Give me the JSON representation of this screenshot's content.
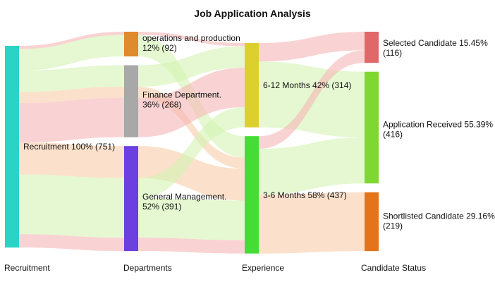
{
  "chart_data": {
    "type": "sankey",
    "title": "Job Application Analysis",
    "columns": [
      "Recruitment",
      "Departments",
      "Experience",
      "Candidate Status"
    ],
    "nodes": [
      {
        "id": "recruitment",
        "column": 0,
        "label": "Recruitment 100% (751)",
        "color": "#2ad3c4"
      },
      {
        "id": "ops",
        "column": 1,
        "label_lines": [
          "operations and production",
          "12% (92)"
        ],
        "color": "#e08a2e"
      },
      {
        "id": "finance",
        "column": 1,
        "label_lines": [
          "Finance Department.",
          "36% (268)"
        ],
        "color": "#a8a8a8"
      },
      {
        "id": "general",
        "column": 1,
        "label_lines": [
          "General Management.",
          "52% (391)"
        ],
        "color": "#6b3fe0"
      },
      {
        "id": "exp612",
        "column": 2,
        "label": "6-12 Months 42% (314)",
        "color": "#dcd02e"
      },
      {
        "id": "exp36",
        "column": 2,
        "label": "3-6 Months 58% (437)",
        "color": "#45dd35"
      },
      {
        "id": "selected",
        "column": 3,
        "label_lines": [
          "Selected Candidate 15.45%",
          "(116)"
        ],
        "color": "#e06868"
      },
      {
        "id": "received",
        "column": 3,
        "label_lines": [
          "Application Received 55.39%",
          "(416)"
        ],
        "color": "#7fd832"
      },
      {
        "id": "shortlisted",
        "column": 3,
        "label_lines": [
          "Shortlisted Candidate 29.16%",
          "(219)"
        ],
        "color": "#e4731a"
      }
    ],
    "node_values": {
      "recruitment": 751,
      "ops": 92,
      "finance": 268,
      "general": 391,
      "exp612": 314,
      "exp36": 437,
      "selected": 116,
      "received": 416,
      "shortlisted": 219
    },
    "links": [
      {
        "source": "recruitment",
        "target": "ops",
        "value": 12,
        "color": "#f5b6b6"
      },
      {
        "source": "recruitment",
        "target": "ops",
        "value": 80,
        "color": "#d3f3b3"
      },
      {
        "source": "recruitment",
        "target": "finance",
        "value": 80,
        "color": "#d3f3b3"
      },
      {
        "source": "recruitment",
        "target": "finance",
        "value": 41,
        "color": "#f8cda9"
      },
      {
        "source": "recruitment",
        "target": "finance",
        "value": 147,
        "color": "#f5b6b6"
      },
      {
        "source": "recruitment",
        "target": "general",
        "value": 119,
        "color": "#f8cda9"
      },
      {
        "source": "recruitment",
        "target": "general",
        "value": 222,
        "color": "#d3f3b3"
      },
      {
        "source": "recruitment",
        "target": "general",
        "value": 50,
        "color": "#f5b6b6"
      },
      {
        "source": "ops",
        "target": "exp612",
        "value": 12,
        "color": "#f5b6b6"
      },
      {
        "source": "ops",
        "target": "exp36",
        "value": 80,
        "color": "#d3f3b3"
      },
      {
        "source": "finance",
        "target": "exp612",
        "value": 80,
        "color": "#d3f3b3"
      },
      {
        "source": "finance",
        "target": "exp36",
        "value": 41,
        "color": "#f8cda9"
      },
      {
        "source": "finance",
        "target": "exp612",
        "value": 147,
        "color": "#f5b6b6"
      },
      {
        "source": "general",
        "target": "exp36",
        "value": 119,
        "color": "#f8cda9"
      },
      {
        "source": "general",
        "target": "exp612",
        "value": 75,
        "color": "#d3f3b3"
      },
      {
        "source": "general",
        "target": "exp36",
        "value": 147,
        "color": "#d3f3b3"
      },
      {
        "source": "general",
        "target": "exp36",
        "value": 50,
        "color": "#f5b6b6"
      },
      {
        "source": "exp612",
        "target": "selected",
        "value": 69,
        "color": "#f5b6b6"
      },
      {
        "source": "exp612",
        "target": "received",
        "value": 245,
        "color": "#d3f3b3"
      },
      {
        "source": "exp36",
        "target": "selected",
        "value": 47,
        "color": "#f5b6b6"
      },
      {
        "source": "exp36",
        "target": "received",
        "value": 171,
        "color": "#d3f3b3"
      },
      {
        "source": "exp36",
        "target": "shortlisted",
        "value": 219,
        "color": "#f8cda9"
      }
    ]
  }
}
